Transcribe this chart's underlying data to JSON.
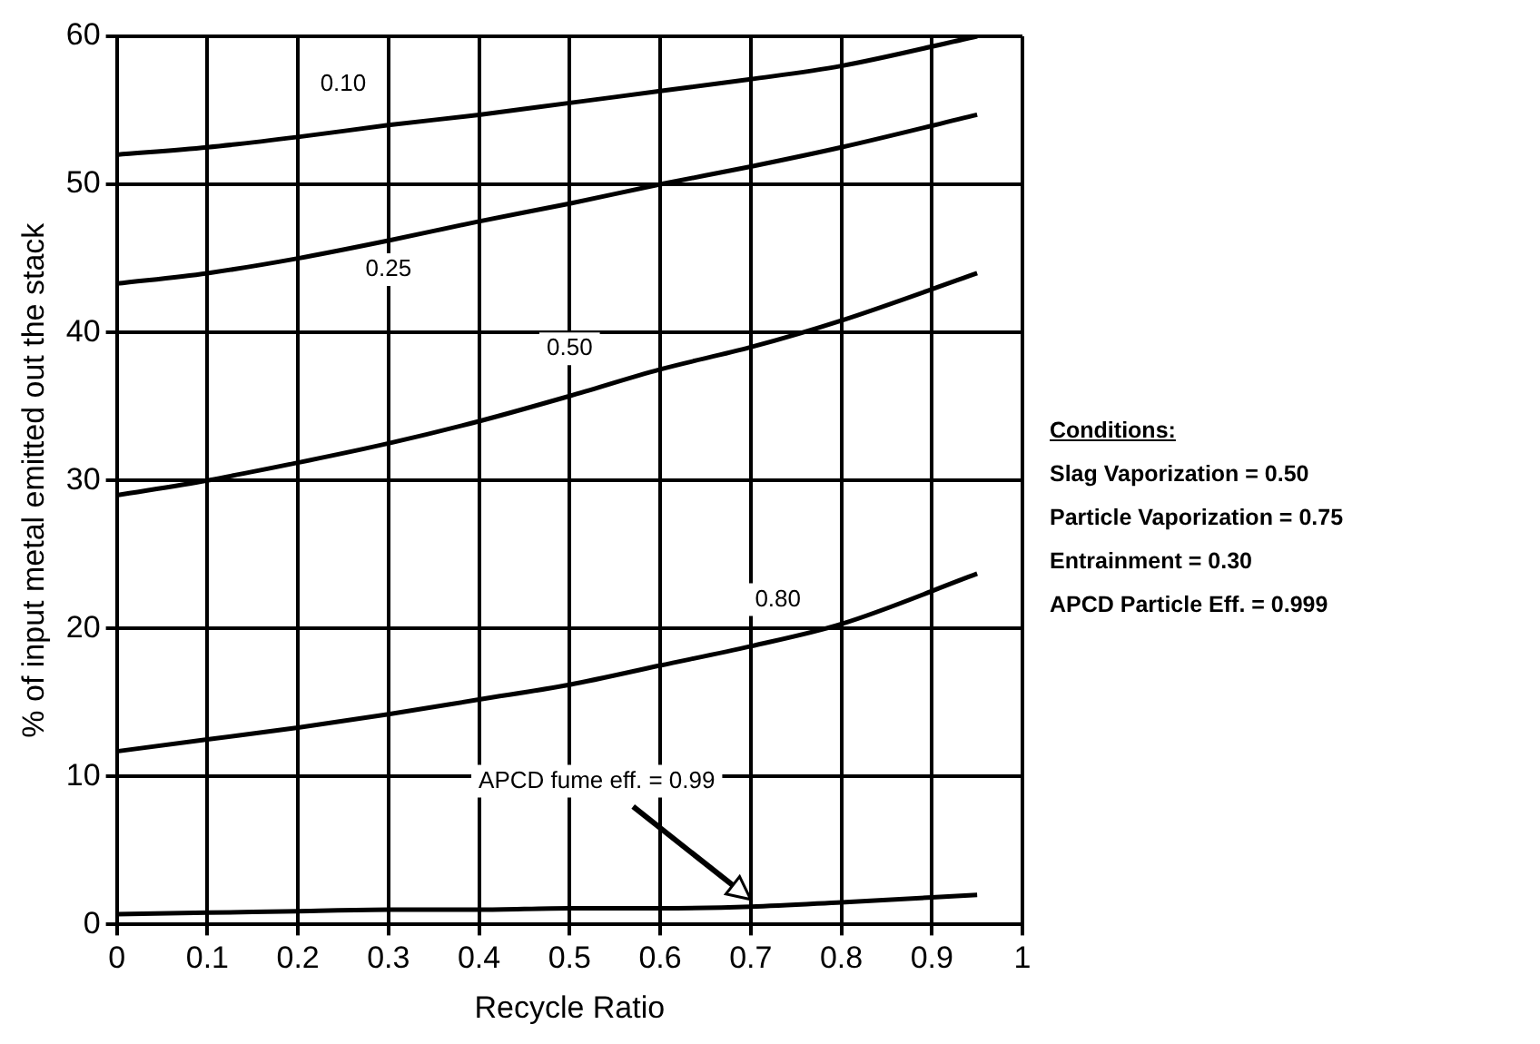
{
  "chart_data": {
    "type": "line",
    "xlabel": "Recycle Ratio",
    "ylabel": "% of input metal emitted out the stack",
    "xlim": [
      0,
      1
    ],
    "xticks": [
      0,
      0.1,
      0.2,
      0.3,
      0.4,
      0.5,
      0.6,
      0.7,
      0.8,
      0.9,
      1
    ],
    "ylim": [
      0,
      60
    ],
    "yticks": [
      0,
      10,
      20,
      30,
      40,
      50,
      60
    ],
    "x": [
      0,
      0.1,
      0.2,
      0.3,
      0.4,
      0.5,
      0.6,
      0.7,
      0.8,
      0.95
    ],
    "series": [
      {
        "name": "0.10",
        "color": "#000000",
        "values": [
          52,
          52.5,
          53.2,
          54,
          54.7,
          55.5,
          56.3,
          57.1,
          58,
          60
        ]
      },
      {
        "name": "0.25",
        "color": "#000000",
        "values": [
          43.3,
          44,
          45,
          46.2,
          47.5,
          48.7,
          50,
          51.2,
          52.5,
          54.7
        ]
      },
      {
        "name": "0.50",
        "color": "#000000",
        "values": [
          29,
          30,
          31.2,
          32.5,
          34,
          35.7,
          37.5,
          39,
          40.8,
          44
        ]
      },
      {
        "name": "0.80",
        "color": "#000000",
        "values": [
          11.7,
          12.5,
          13.3,
          14.2,
          15.2,
          16.2,
          17.5,
          18.8,
          20.3,
          23.7
        ]
      },
      {
        "name": "APCD fume eff. = 0.99",
        "color": "#000000",
        "values": [
          0.7,
          0.8,
          0.9,
          1,
          1,
          1.1,
          1.1,
          1.2,
          1.5,
          2
        ]
      }
    ],
    "grid": true,
    "marker": "none",
    "line_style": "solid",
    "annotations": [
      "Conditions:",
      "Slag Vaporization = 0.50",
      "Particle Vaporization = 0.75",
      "Entrainment = 0.30",
      "APCD Particle Eff. = 0.999"
    ]
  }
}
